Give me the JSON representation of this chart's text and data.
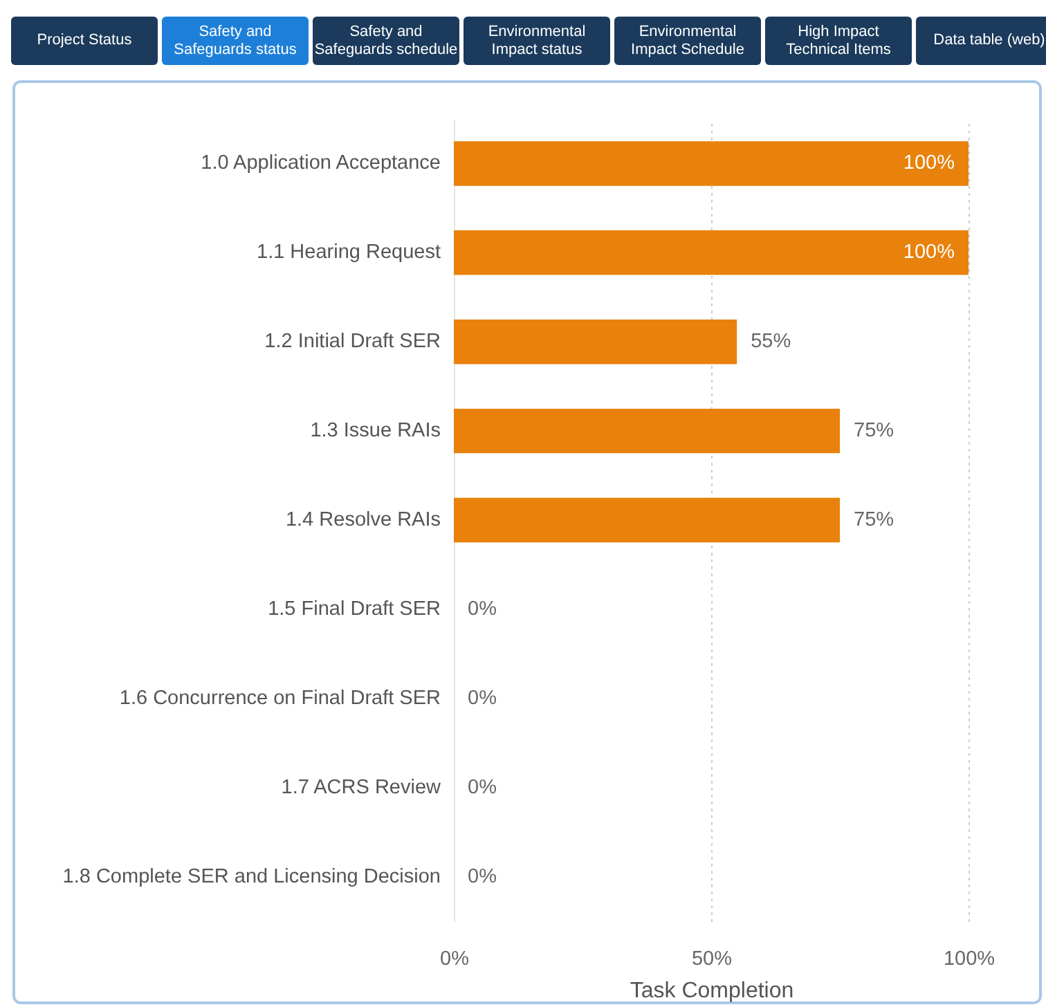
{
  "chart_data": {
    "type": "bar",
    "orientation": "horizontal",
    "xlabel": "Task Completion",
    "categories": [
      "1.0 Application Acceptance",
      "1.1 Hearing Request",
      "1.2 Initial Draft SER",
      "1.3 Issue RAIs",
      "1.4 Resolve RAIs",
      "1.5 Final Draft SER",
      "1.6 Concurrence on Final Draft SER",
      "1.7 ACRS Review",
      "1.8 Complete SER and Licensing Decision"
    ],
    "values": [
      100,
      100,
      55,
      75,
      75,
      0,
      0,
      0,
      0
    ],
    "value_labels": [
      "100%",
      "100%",
      "55%",
      "75%",
      "75%",
      "0%",
      "0%",
      "0%",
      "0%"
    ],
    "color": "#e8820c",
    "xlim": [
      0,
      100
    ],
    "xticks": [
      {
        "value": 0,
        "label": "0%"
      },
      {
        "value": 50,
        "label": "50%"
      },
      {
        "value": 100,
        "label": "100%"
      }
    ],
    "grid": "x",
    "annotations": [
      "Project Status",
      "Safety and Safeguards status",
      "Safety and Safeguards schedule",
      "Environmental Impact status",
      "Environmental Impact Schedule",
      "High Impact Technical Items",
      "Data table (web)"
    ]
  }
}
